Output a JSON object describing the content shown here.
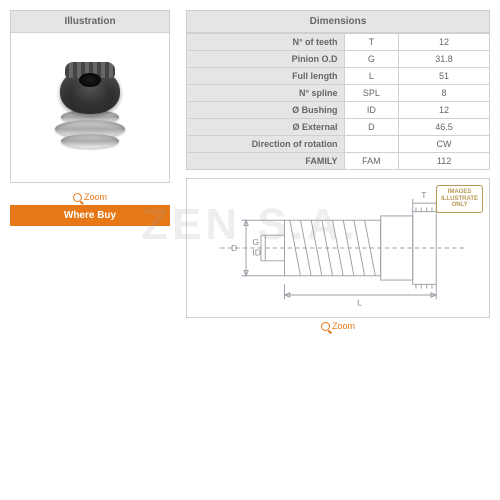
{
  "watermark": "ZEN S.A.",
  "left": {
    "header": "Illustration",
    "zoom": "Zoom",
    "where_buy": "Where Buy"
  },
  "right": {
    "header": "Dimensions",
    "rows": [
      {
        "label": "N° of teeth",
        "symbol": "T",
        "value": "12"
      },
      {
        "label": "Pinion O.D",
        "symbol": "G",
        "value": "31.8"
      },
      {
        "label": "Full length",
        "symbol": "L",
        "value": "51"
      },
      {
        "label": "N° spline",
        "symbol": "SPL",
        "value": "8"
      },
      {
        "label": "Ø Bushing",
        "symbol": "ID",
        "value": "12"
      },
      {
        "label": "Ø External",
        "symbol": "D",
        "value": "46.5"
      },
      {
        "label": "Direction of rotation",
        "symbol": "",
        "value": "CW"
      },
      {
        "label": "FAMILY",
        "symbol": "FAM",
        "value": "112"
      }
    ],
    "diagram": {
      "stamp_line1": "IMAGES",
      "stamp_line2": "ILLUSTRATE",
      "stamp_line3": "ONLY",
      "labels": {
        "D": "D",
        "G": "G",
        "ID": "ID",
        "L": "L",
        "T": "T"
      },
      "colors": {
        "stroke": "#9aa1a8",
        "text": "#888888",
        "stamp": "#bb9955"
      }
    },
    "zoom": "Zoom"
  },
  "colors": {
    "header_bg": "#e5e5e5",
    "border": "#d0d0d0",
    "accent": "#e67817",
    "text": "#666666",
    "bg": "#ffffff"
  }
}
